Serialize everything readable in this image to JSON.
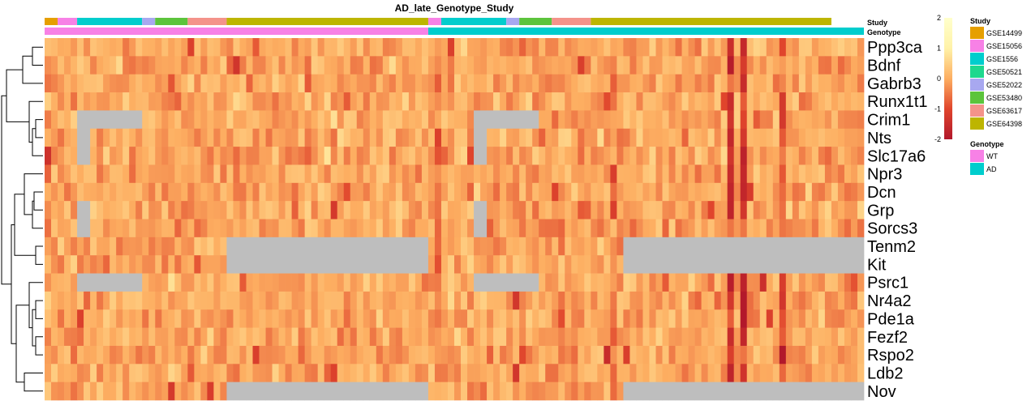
{
  "chart_data": {
    "type": "heatmap",
    "title": "AD_late_Genotype_Study",
    "genes": [
      "Ppp3ca",
      "Bdnf",
      "Gabrb3",
      "Runx1t1",
      "Crim1",
      "Nts",
      "Slc17a6",
      "Npr3",
      "Dcn",
      "Grp",
      "Sorcs3",
      "Tenm2",
      "Kit",
      "Psrc1",
      "Nr4a2",
      "Pde1a",
      "Fezf2",
      "Rspo2",
      "Ldb2",
      "Nov"
    ],
    "n_samples": 126,
    "annotation_tracks": [
      "Study",
      "Genotype"
    ],
    "study_groups": [
      {
        "name": "GSE14499",
        "color": "#E69F00",
        "n": 2
      },
      {
        "name": "GSE15056",
        "color": "#F781E6",
        "n": 3
      },
      {
        "name": "GSE1556",
        "color": "#00CDCD",
        "n": 10
      },
      {
        "name": "GSE50521",
        "color": "#1ED88E",
        "n": 0
      },
      {
        "name": "GSE52022",
        "color": "#A8A8F0",
        "n": 2
      },
      {
        "name": "GSE53480",
        "color": "#5CC43C",
        "n": 5
      },
      {
        "name": "GSE63617",
        "color": "#F4938A",
        "n": 6
      },
      {
        "name": "GSE64398",
        "color": "#BDB500",
        "n": 31
      },
      {
        "name": "GSE15056",
        "color": "#F781E6",
        "n": 2
      },
      {
        "name": "GSE1556",
        "color": "#00CDCD",
        "n": 10
      },
      {
        "name": "GSE52022",
        "color": "#A8A8F0",
        "n": 2
      },
      {
        "name": "GSE53480",
        "color": "#5CC43C",
        "n": 5
      },
      {
        "name": "GSE63617",
        "color": "#F4938A",
        "n": 6
      },
      {
        "name": "GSE64398",
        "color": "#BDB500",
        "n": 37
      }
    ],
    "genotype_groups": [
      {
        "name": "WT",
        "color": "#F781E6",
        "n": 59
      },
      {
        "name": "AD",
        "color": "#00CDCD",
        "n": 67
      }
    ],
    "missing_blocks": [
      {
        "genes": [
          "Crim1"
        ],
        "from": 5,
        "to": 14
      },
      {
        "genes": [
          "Nts",
          "Slc17a6"
        ],
        "from": 5,
        "to": 6
      },
      {
        "genes": [
          "Grp",
          "Sorcs3"
        ],
        "from": 5,
        "to": 6
      },
      {
        "genes": [
          "Psrc1"
        ],
        "from": 5,
        "to": 14
      },
      {
        "genes": [
          "Crim1"
        ],
        "from": 66,
        "to": 75
      },
      {
        "genes": [
          "Nts",
          "Slc17a6"
        ],
        "from": 66,
        "to": 67
      },
      {
        "genes": [
          "Grp",
          "Sorcs3"
        ],
        "from": 66,
        "to": 67
      },
      {
        "genes": [
          "Psrc1"
        ],
        "from": 66,
        "to": 75
      },
      {
        "genes": [
          "Tenm2",
          "Kit"
        ],
        "from": 28,
        "to": 58
      },
      {
        "genes": [
          "Nov"
        ],
        "from": 28,
        "to": 58
      },
      {
        "genes": [
          "Tenm2",
          "Kit"
        ],
        "from": 89,
        "to": 125
      },
      {
        "genes": [
          "Nov"
        ],
        "from": 89,
        "to": 125
      }
    ],
    "dark_columns": [
      {
        "col": 105,
        "strength": 1.4
      },
      {
        "col": 107,
        "strength": 1.6
      },
      {
        "col": 113,
        "strength": 1.0
      },
      {
        "col": 87,
        "strength": 0.6
      },
      {
        "col": 60,
        "strength": 0.6
      }
    ],
    "color_scale": {
      "min": -2,
      "max": 2,
      "ticks": [
        2,
        1,
        0,
        -1,
        -2
      ],
      "stops": [
        "#B2182B",
        "#E0452C",
        "#FDAE61",
        "#FFF2A8",
        "#FFFFCC"
      ]
    },
    "missing_color": "#BEBEBE",
    "legend": {
      "study_title": "Study",
      "study_entries": [
        {
          "name": "GSE14499",
          "color": "#E69F00"
        },
        {
          "name": "GSE15056",
          "color": "#F781E6"
        },
        {
          "name": "GSE1556",
          "color": "#00CDCD"
        },
        {
          "name": "GSE50521",
          "color": "#1ED88E"
        },
        {
          "name": "GSE52022",
          "color": "#A8A8F0"
        },
        {
          "name": "GSE53480",
          "color": "#5CC43C"
        },
        {
          "name": "GSE63617",
          "color": "#F4938A"
        },
        {
          "name": "GSE64398",
          "color": "#BDB500"
        }
      ],
      "genotype_title": "Genotype",
      "genotype_entries": [
        {
          "name": "WT",
          "color": "#F781E6"
        },
        {
          "name": "AD",
          "color": "#00CDCD"
        }
      ]
    }
  }
}
